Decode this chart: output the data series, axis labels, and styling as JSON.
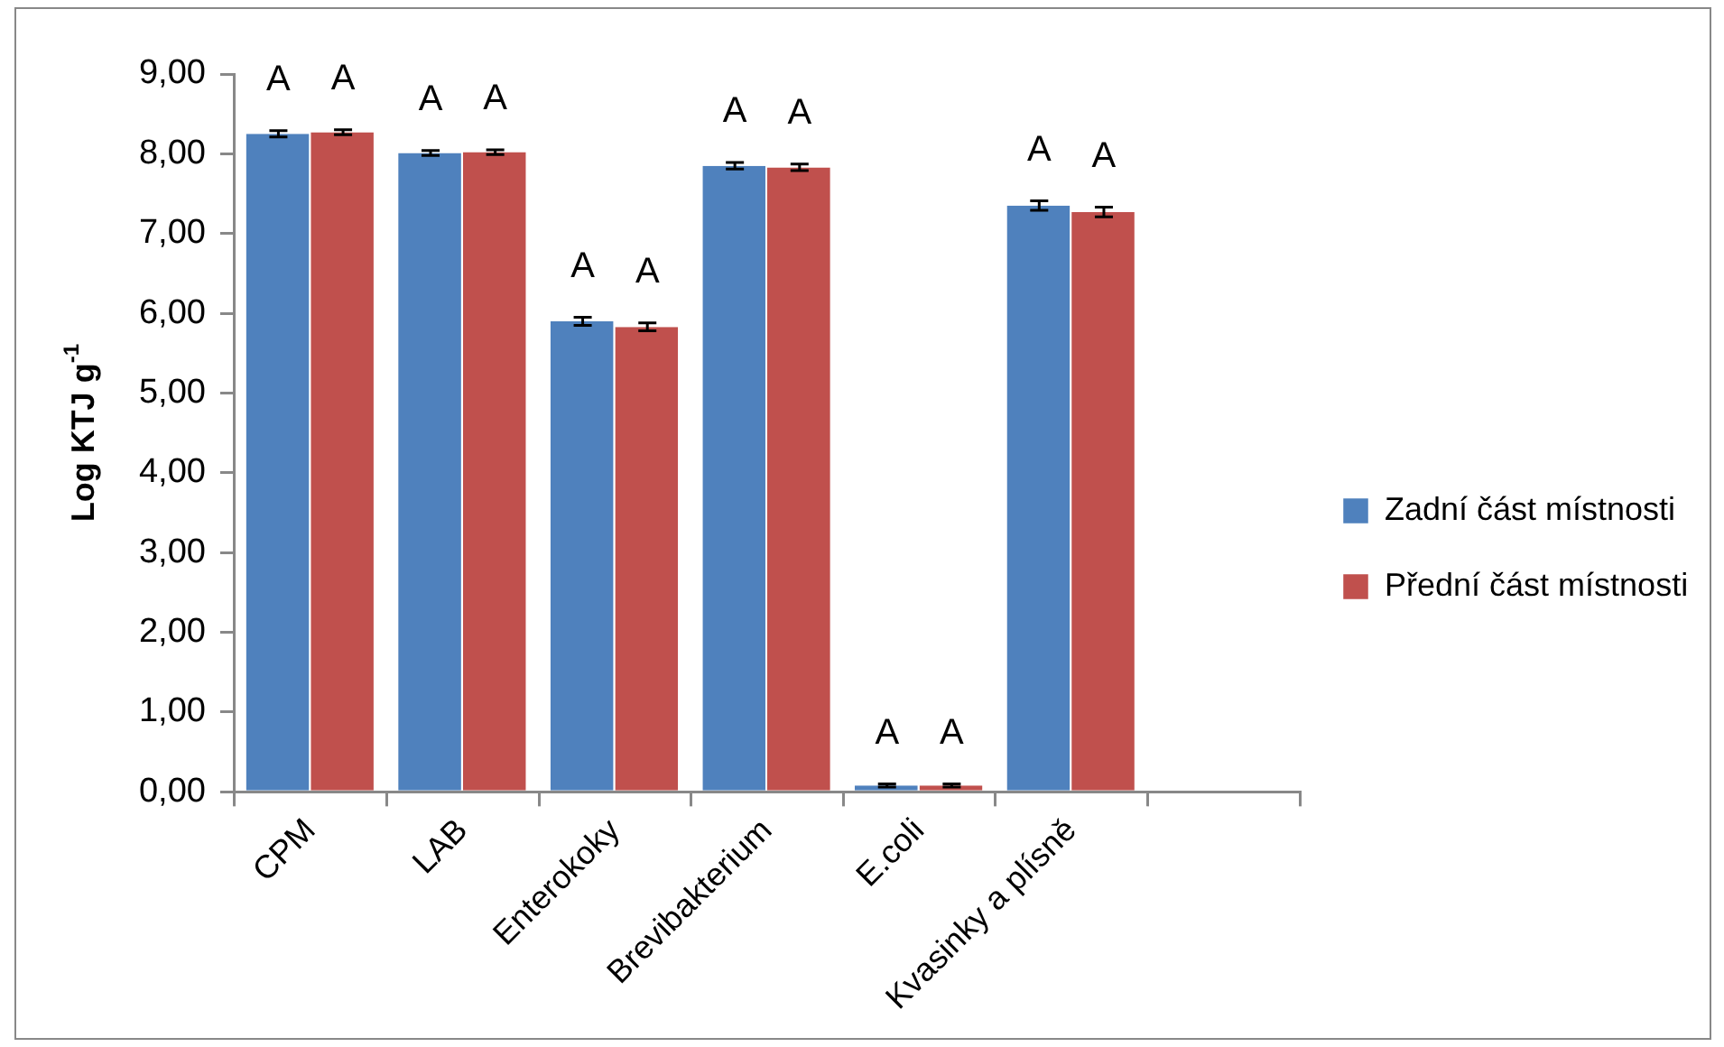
{
  "chart_data": {
    "type": "bar",
    "ylabel": "Log KTJ g$^{-1}$",
    "categories": [
      "CPM",
      "LAB",
      "Enterokoky",
      "Brevibakterium",
      "E.coli",
      "Kvasinky a plísně",
      null
    ],
    "series": [
      {
        "name": "Zadní část místnosti",
        "color": "#4f81bd",
        "values": [
          8.25,
          8.01,
          5.9,
          7.85,
          0.08,
          7.35,
          null
        ],
        "errors": [
          0.04,
          0.03,
          0.05,
          0.04,
          0.02,
          0.06,
          null
        ]
      },
      {
        "name": "Přední část místnosti",
        "color": "#c0504d",
        "values": [
          8.27,
          8.02,
          5.83,
          7.83,
          0.08,
          7.27,
          null
        ],
        "errors": [
          0.03,
          0.03,
          0.05,
          0.04,
          0.02,
          0.06,
          null
        ]
      }
    ],
    "ylim": [
      0,
      9
    ],
    "yticks": [
      {
        "value": 0,
        "label": "0,00"
      },
      {
        "value": 1,
        "label": "1,00"
      },
      {
        "value": 2,
        "label": "2,00"
      },
      {
        "value": 3,
        "label": "3,00"
      },
      {
        "value": 4,
        "label": "4,00"
      },
      {
        "value": 5,
        "label": "5,00"
      },
      {
        "value": 6,
        "label": "6,00"
      },
      {
        "value": 7,
        "label": "7,00"
      },
      {
        "value": 8,
        "label": "8,00"
      },
      {
        "value": 9,
        "label": "9,00"
      }
    ],
    "grid": false,
    "legend": "right",
    "annotations": [
      "A",
      "A",
      "A",
      "A",
      "A",
      "A",
      "A",
      "A",
      "A",
      "A",
      "A",
      "A"
    ]
  }
}
